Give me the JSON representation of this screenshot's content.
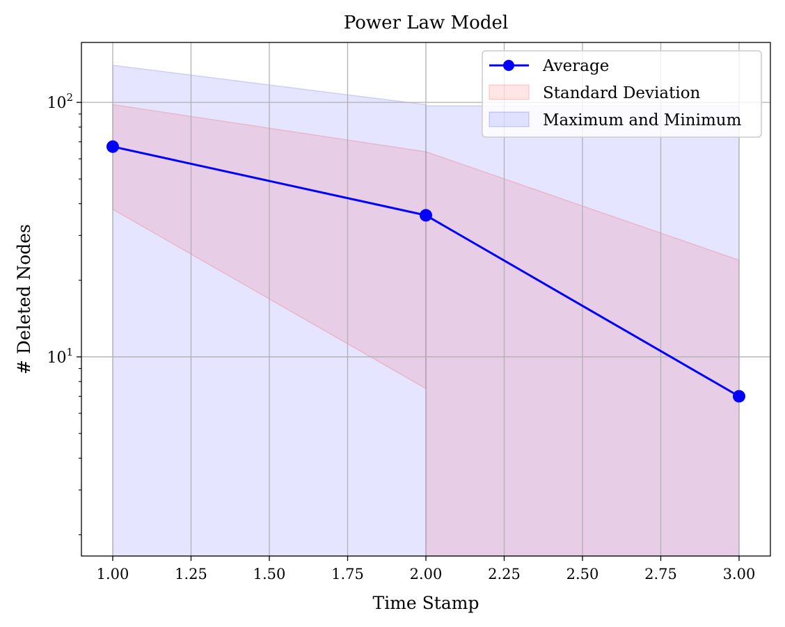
{
  "chart_data": {
    "type": "line",
    "title": "Power Law Model",
    "xlabel": "Time Stamp",
    "ylabel": "# Deleted Nodes",
    "x_scale": "linear",
    "y_scale": "log",
    "xlim": [
      0.9,
      3.1
    ],
    "ylim": [
      1.65,
      172
    ],
    "grid": true,
    "legend_position": "top-right",
    "x_ticks": [
      1.0,
      1.25,
      1.5,
      1.75,
      2.0,
      2.25,
      2.5,
      2.75,
      3.0
    ],
    "x_tick_labels": [
      "1.00",
      "1.25",
      "1.50",
      "1.75",
      "2.00",
      "2.25",
      "2.50",
      "2.75",
      "3.00"
    ],
    "y_major_ticks": [
      {
        "value": 10,
        "base": "10",
        "exp": "1"
      },
      {
        "value": 100,
        "base": "10",
        "exp": "2"
      }
    ],
    "y_minor_ticks": [
      2,
      3,
      4,
      5,
      6,
      7,
      8,
      9,
      20,
      30,
      40,
      50,
      60,
      70,
      80,
      90
    ],
    "series": [
      {
        "name": "Average",
        "kind": "line",
        "color": "#0000ff",
        "x": [
          1,
          2,
          3
        ],
        "y": [
          67,
          36,
          7
        ]
      }
    ],
    "bands": [
      {
        "name": "Maximum and Minimum",
        "color": "#0000ff",
        "opacity": 0.1,
        "segments": [
          {
            "x": [
              1,
              2
            ],
            "upper": [
              140,
              98
            ],
            "lower": [
              1.65,
              1.65
            ]
          },
          {
            "x": [
              2,
              3
            ],
            "upper": [
              97,
              97
            ],
            "lower": [
              1.65,
              1.65
            ]
          }
        ]
      },
      {
        "name": "Standard Deviation",
        "color": "#ff0000",
        "opacity": 0.1,
        "segments": [
          {
            "x": [
              1,
              2
            ],
            "upper": [
              98,
              64
            ],
            "lower": [
              38,
              7.5
            ]
          },
          {
            "x": [
              2,
              3
            ],
            "upper": [
              64,
              24
            ],
            "lower": [
              1.65,
              1.65
            ]
          }
        ]
      }
    ],
    "legend": [
      {
        "label": "Average",
        "kind": "line-marker",
        "color": "#0000ff"
      },
      {
        "label": "Standard Deviation",
        "kind": "patch",
        "color": "#ff0000"
      },
      {
        "label": "Maximum and Minimum",
        "kind": "patch",
        "color": "#0000ff"
      }
    ]
  }
}
